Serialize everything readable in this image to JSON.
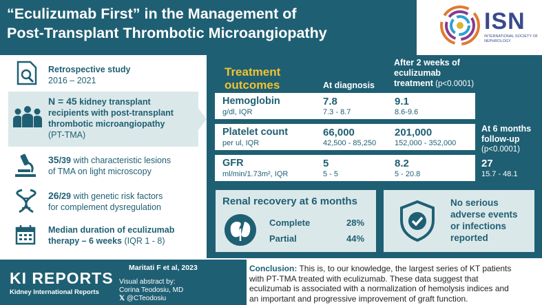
{
  "header": {
    "title_line1": "“Eculizumab First” in the Management of",
    "title_line2": "Post-Transplant Thrombotic Microangiopathy",
    "logo_abbrev": "ISN",
    "logo_subtitle": "INTERNATIONAL SOCIETY OF NEPHROLOGY"
  },
  "study": {
    "type": "Retrospective study",
    "years": "2016 – 2021"
  },
  "cohort": {
    "n_prefix": "N = ",
    "n_value": "45",
    "line1_rest": " kidney transplant",
    "line2": "recipients with post-transplant",
    "line3": "thrombotic microangiopathy",
    "line4": "(PT-TMA)"
  },
  "biopsy": {
    "fraction": "35",
    "denominator": "/39",
    "line1_rest": " with characteristic lesions",
    "line2": "of TMA on light microscopy"
  },
  "genetic": {
    "fraction": "26",
    "denominator": "/29",
    "line1_rest": " with genetic risk factors",
    "line2": "for complement  dysregulation"
  },
  "duration": {
    "line1": "Median duration of eculizumab",
    "line2_bold": "therapy – 6 weeks",
    "line2_rest": " (IQR 1 - 8)"
  },
  "outcomes": {
    "heading_line1": "Treatment",
    "heading_line2": "outcomes",
    "col_diagnosis": "At diagnosis",
    "col_after_line1": "After 2 weeks of",
    "col_after_line2": "eculizumab",
    "col_after_line3": "treatment",
    "col_after_p": " (p<0.0001)",
    "col_6m_line1": "At 6 months",
    "col_6m_line2": "follow-up",
    "col_6m_p": "(p<0.0001)",
    "rows": [
      {
        "label": "Hemoglobin",
        "unit": "g/dl, IQR",
        "diag_value": "7.8",
        "diag_range": "7.3 - 8.7",
        "after_value": "9.1",
        "after_range": "8.6-9.6"
      },
      {
        "label": "Platelet count",
        "unit": "per ul, IQR",
        "diag_value": "66,000",
        "diag_range": "42,500 - 85,250",
        "after_value": "201,000",
        "after_range": "152,000 - 352,000"
      },
      {
        "label": "GFR",
        "unit": "ml/min/1.73m², IQR",
        "diag_value": "5",
        "diag_range": "5 - 5",
        "after_value": "8.2",
        "after_range": "5 - 20.8",
        "m6_value": "27",
        "m6_range": "15.7 - 48.1"
      }
    ]
  },
  "renal": {
    "title": "Renal recovery at 6 months",
    "complete_label": "Complete",
    "complete_value": "28%",
    "partial_label": "Partial",
    "partial_value": "44%"
  },
  "safety": {
    "line1": "No serious",
    "line2": "adverse events",
    "line3": "or infections",
    "line4": "reported"
  },
  "footer": {
    "journal_brand": "KI REPORTS",
    "journal_sub": "Kidney International Reports",
    "citation": "Maritati F et al, 2023",
    "abstract_by": "Visual abstract by:",
    "author": "Corina Teodosiu, MD",
    "handle": "@CTeodosiu",
    "conclusion_label": "Conclusion:",
    "conclusion_line1": " This is, to our knowledge,  the largest series of KT patients",
    "conclusion_line2": "with PT-TMA treated with eculizumab.  These data suggest that",
    "conclusion_line3": "eculizumab  is associated with a normalization  of hemolysis indices and",
    "conclusion_line4": "an important and progressive improvement  of graft function."
  },
  "colors": {
    "teal": "#1f5f73",
    "light_teal": "#dbe8ea",
    "yellow": "#f2c230"
  }
}
